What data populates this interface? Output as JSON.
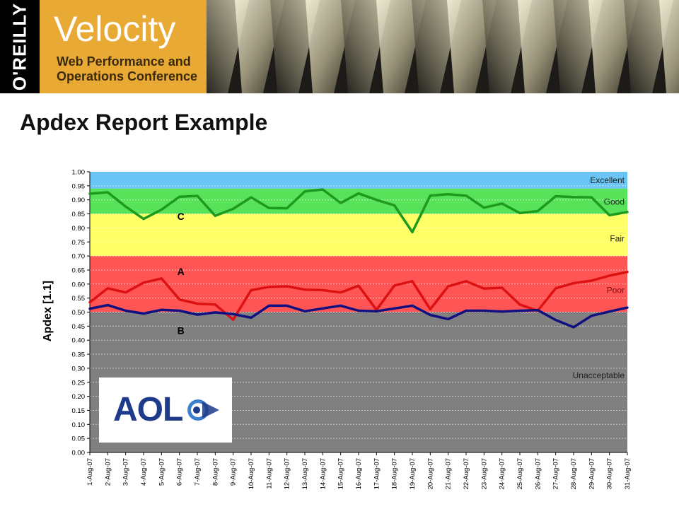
{
  "header": {
    "publisher_logo": "O'REILLY",
    "conference_name": "Velocity",
    "conference_subtitle": "Web Performance and Operations Conference"
  },
  "page_title": "Apdex Report Example",
  "aol_logo_text": "AOL",
  "colors": {
    "excellent": "#6ac4f4",
    "good": "#58e25a",
    "fair": "#ffff66",
    "poor": "#ff5555",
    "unacceptable": "#808080",
    "series_C": "#1e9b1e",
    "series_A": "#dd1111",
    "series_B": "#101080",
    "velocity_orange": "#e9aa35"
  },
  "chart_data": {
    "type": "line",
    "title": "",
    "xlabel": "",
    "ylabel": "Apdex [1.1]",
    "ylim": [
      0,
      1
    ],
    "yticks": [
      "0.00",
      "0.05",
      "0.10",
      "0.15",
      "0.20",
      "0.25",
      "0.30",
      "0.35",
      "0.40",
      "0.45",
      "0.50",
      "0.55",
      "0.60",
      "0.65",
      "0.70",
      "0.75",
      "0.80",
      "0.85",
      "0.90",
      "0.95",
      "1.00"
    ],
    "grid": true,
    "categories": [
      "1-Aug-07",
      "2-Aug-07",
      "3-Aug-07",
      "4-Aug-07",
      "5-Aug-07",
      "6-Aug-07",
      "7-Aug-07",
      "8-Aug-07",
      "9-Aug-07",
      "10-Aug-07",
      "11-Aug-07",
      "12-Aug-07",
      "13-Aug-07",
      "14-Aug-07",
      "15-Aug-07",
      "16-Aug-07",
      "17-Aug-07",
      "18-Aug-07",
      "19-Aug-07",
      "20-Aug-07",
      "21-Aug-07",
      "22-Aug-07",
      "23-Aug-07",
      "24-Aug-07",
      "25-Aug-07",
      "26-Aug-07",
      "27-Aug-07",
      "28-Aug-07",
      "29-Aug-07",
      "30-Aug-07",
      "31-Aug-07"
    ],
    "bands": [
      {
        "label": "Excellent",
        "from": 0.94,
        "to": 1.0,
        "color_key": "excellent"
      },
      {
        "label": "Good",
        "from": 0.85,
        "to": 0.94,
        "color_key": "good"
      },
      {
        "label": "Fair",
        "from": 0.7,
        "to": 0.85,
        "color_key": "fair"
      },
      {
        "label": "Poor",
        "from": 0.5,
        "to": 0.7,
        "color_key": "poor"
      },
      {
        "label": "Unacceptable",
        "from": 0.0,
        "to": 0.5,
        "color_key": "unacceptable"
      }
    ],
    "series": [
      {
        "name": "C",
        "color_key": "series_C",
        "label_index": 5,
        "values": [
          0.922,
          0.927,
          0.876,
          0.832,
          0.865,
          0.911,
          0.914,
          0.843,
          0.868,
          0.909,
          0.871,
          0.87,
          0.93,
          0.937,
          0.889,
          0.923,
          0.9,
          0.88,
          0.785,
          0.915,
          0.92,
          0.915,
          0.872,
          0.887,
          0.853,
          0.86,
          0.913,
          0.91,
          0.909,
          0.845,
          0.857
        ]
      },
      {
        "name": "A",
        "color_key": "series_A",
        "label_index": 5,
        "values": [
          0.535,
          0.585,
          0.57,
          0.605,
          0.62,
          0.545,
          0.53,
          0.527,
          0.473,
          0.578,
          0.59,
          0.592,
          0.58,
          0.578,
          0.57,
          0.594,
          0.508,
          0.595,
          0.61,
          0.51,
          0.592,
          0.61,
          0.584,
          0.587,
          0.527,
          0.505,
          0.585,
          0.603,
          0.612,
          0.63,
          0.643
        ]
      },
      {
        "name": "B",
        "color_key": "series_B",
        "label_index": 5,
        "values": [
          0.512,
          0.525,
          0.505,
          0.495,
          0.508,
          0.505,
          0.491,
          0.499,
          0.493,
          0.48,
          0.523,
          0.523,
          0.503,
          0.513,
          0.523,
          0.505,
          0.503,
          0.513,
          0.523,
          0.49,
          0.475,
          0.505,
          0.505,
          0.502,
          0.505,
          0.507,
          0.472,
          0.446,
          0.487,
          0.502,
          0.516
        ]
      }
    ]
  }
}
